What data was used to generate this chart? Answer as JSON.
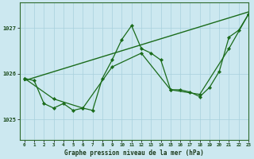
{
  "title": "Graphe pression niveau de la mer (hPa)",
  "background_color": "#cce8f0",
  "plot_bg_color": "#cce8f0",
  "grid_color": "#a8d0dc",
  "line_color": "#1a6b1a",
  "xlim": [
    -0.5,
    23
  ],
  "ylim": [
    1024.55,
    1027.55
  ],
  "yticks": [
    1025,
    1026,
    1027
  ],
  "xticks": [
    0,
    1,
    2,
    3,
    4,
    5,
    6,
    7,
    8,
    9,
    10,
    11,
    12,
    13,
    14,
    15,
    16,
    17,
    18,
    19,
    20,
    21,
    22,
    23
  ],
  "series": [
    {
      "x": [
        0,
        23
      ],
      "y": [
        1025.85,
        1027.35
      ],
      "marker": false,
      "linewidth": 1.0
    },
    {
      "x": [
        0,
        1,
        2,
        3,
        4,
        5,
        6,
        7,
        8,
        9,
        10,
        11,
        12,
        13,
        14,
        15,
        16,
        17,
        18,
        19,
        20,
        21,
        22,
        23
      ],
      "y": [
        1025.9,
        1025.85,
        1025.35,
        1025.25,
        1025.35,
        1025.2,
        1025.25,
        1025.2,
        1025.9,
        1026.3,
        1026.75,
        1027.05,
        1026.55,
        1026.45,
        1026.3,
        1025.65,
        1025.65,
        1025.6,
        1025.5,
        1025.7,
        1026.05,
        1026.8,
        1026.95,
        1027.3
      ],
      "marker": true,
      "linewidth": 0.9
    },
    {
      "x": [
        0,
        3,
        6,
        9,
        12,
        15,
        18,
        21,
        23
      ],
      "y": [
        1025.9,
        1025.45,
        1025.25,
        1026.15,
        1026.45,
        1025.65,
        1025.55,
        1026.55,
        1027.3
      ],
      "marker": true,
      "linewidth": 0.9
    }
  ]
}
